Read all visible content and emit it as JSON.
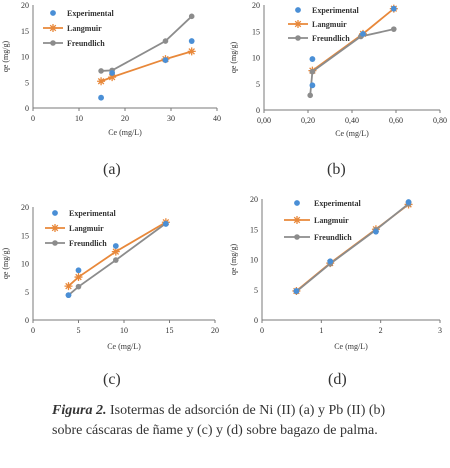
{
  "chart_data": [
    {
      "type": "scatter",
      "panel": "(a)",
      "xlabel": "Ce (mg/L)",
      "ylabel": "qe (mg/g)",
      "xlim": [
        0,
        40
      ],
      "ylim": [
        0,
        20
      ],
      "xticks": [
        "0",
        "10",
        "20",
        "30",
        "40"
      ],
      "yticks": [
        "0",
        "5",
        "10",
        "15",
        "20"
      ],
      "legend": [
        "Experimental",
        "Langmuir",
        "Freundlich"
      ],
      "legend_position": "top-left",
      "series": [
        {
          "name": "Experimental",
          "style": "dots",
          "color": "#4a8fd6",
          "x": [
            14.8,
            17.2,
            28.8,
            34.5
          ],
          "y": [
            2.0,
            6.8,
            9.3,
            13.0
          ]
        },
        {
          "name": "Langmuir",
          "style": "line-star",
          "color": "#e8883a",
          "x": [
            14.8,
            17.2,
            28.8,
            34.5
          ],
          "y": [
            5.2,
            6.0,
            9.5,
            11.0
          ]
        },
        {
          "name": "Freundlich",
          "style": "line-dot",
          "color": "#8c8c8c",
          "x": [
            14.8,
            17.2,
            28.8,
            34.5
          ],
          "y": [
            7.2,
            7.3,
            13.0,
            17.8
          ]
        }
      ]
    },
    {
      "type": "scatter",
      "panel": "(b)",
      "xlabel": "Ce (mg/L)",
      "ylabel": "qe (mg/g)",
      "xlim": [
        0,
        0.8
      ],
      "ylim": [
        0,
        20
      ],
      "xticks": [
        "0,00",
        "0,20",
        "0,40",
        "0,60",
        "0,80"
      ],
      "yticks": [
        "0",
        "5",
        "10",
        "15",
        "20"
      ],
      "legend": [
        "Experimental",
        "Langmuir",
        "Freundlich"
      ],
      "legend_position": "top-right",
      "series": [
        {
          "name": "Experimental",
          "style": "dots",
          "color": "#4a8fd6",
          "x": [
            0.22,
            0.22,
            0.45,
            0.59
          ],
          "y": [
            4.7,
            9.7,
            14.5,
            19.3
          ]
        },
        {
          "name": "Langmuir",
          "style": "line-star",
          "color": "#e8883a",
          "x": [
            0.22,
            0.45,
            0.59
          ],
          "y": [
            7.5,
            14.5,
            19.3
          ]
        },
        {
          "name": "Freundlich",
          "style": "line-dot",
          "color": "#8c8c8c",
          "x": [
            0.21,
            0.22,
            0.44,
            0.59
          ],
          "y": [
            2.8,
            7.3,
            14.0,
            15.4
          ]
        }
      ]
    },
    {
      "type": "scatter",
      "panel": "(c)",
      "xlabel": "Ce (mg/L)",
      "ylabel": "qe (mg/g)",
      "xlim": [
        0,
        20
      ],
      "ylim": [
        0,
        20
      ],
      "xticks": [
        "0",
        "5",
        "10",
        "15",
        "20"
      ],
      "yticks": [
        "0",
        "5",
        "10",
        "15",
        "20"
      ],
      "legend": [
        "Experimental",
        "Langmuir",
        "Freundlich"
      ],
      "legend_position": "top-left",
      "series": [
        {
          "name": "Experimental",
          "style": "dots",
          "color": "#4a8fd6",
          "x": [
            3.9,
            5.0,
            9.1,
            14.6
          ],
          "y": [
            4.4,
            8.8,
            13.1,
            17.0
          ]
        },
        {
          "name": "Langmuir",
          "style": "line-star",
          "color": "#e8883a",
          "x": [
            3.9,
            5.0,
            9.1,
            14.6
          ],
          "y": [
            6.0,
            7.6,
            12.1,
            17.3
          ]
        },
        {
          "name": "Freundlich",
          "style": "line-dot",
          "color": "#8c8c8c",
          "x": [
            3.9,
            5.0,
            9.1,
            14.6
          ],
          "y": [
            4.4,
            5.9,
            10.6,
            17.1
          ]
        }
      ]
    },
    {
      "type": "scatter",
      "panel": "(d)",
      "xlabel": "Ce (mg/L)",
      "ylabel": "qe (mg/g)",
      "xlim": [
        0,
        3
      ],
      "ylim": [
        0,
        20
      ],
      "xticks": [
        "0",
        "1",
        "2",
        "3"
      ],
      "yticks": [
        "0",
        "5",
        "10",
        "15",
        "20"
      ],
      "legend": [
        "Experimental",
        "Langmuir",
        "Freundlich"
      ],
      "legend_position": "top-left",
      "series": [
        {
          "name": "Experimental",
          "style": "dots",
          "color": "#4a8fd6",
          "x": [
            0.58,
            1.15,
            1.92,
            2.47
          ],
          "y": [
            4.8,
            9.7,
            14.6,
            19.5
          ]
        },
        {
          "name": "Langmuir",
          "style": "line-star",
          "color": "#e8883a",
          "x": [
            0.58,
            1.15,
            1.92,
            2.47
          ],
          "y": [
            4.8,
            9.4,
            15.0,
            19.1
          ]
        },
        {
          "name": "Freundlich",
          "style": "line-dot",
          "color": "#8c8c8c",
          "x": [
            0.58,
            1.15,
            1.92,
            2.47
          ],
          "y": [
            4.7,
            9.3,
            14.9,
            19.2
          ]
        }
      ]
    }
  ],
  "panel_labels": [
    "(a)",
    "(b)",
    "(c)",
    "(d)"
  ],
  "caption": {
    "figure_label": "Figura 2.",
    "text": " Isotermas de adsorción de Ni (II) (a) y Pb (II) (b) sobre cáscaras de ñame y (c) y (d) sobre bagazo de palma."
  }
}
